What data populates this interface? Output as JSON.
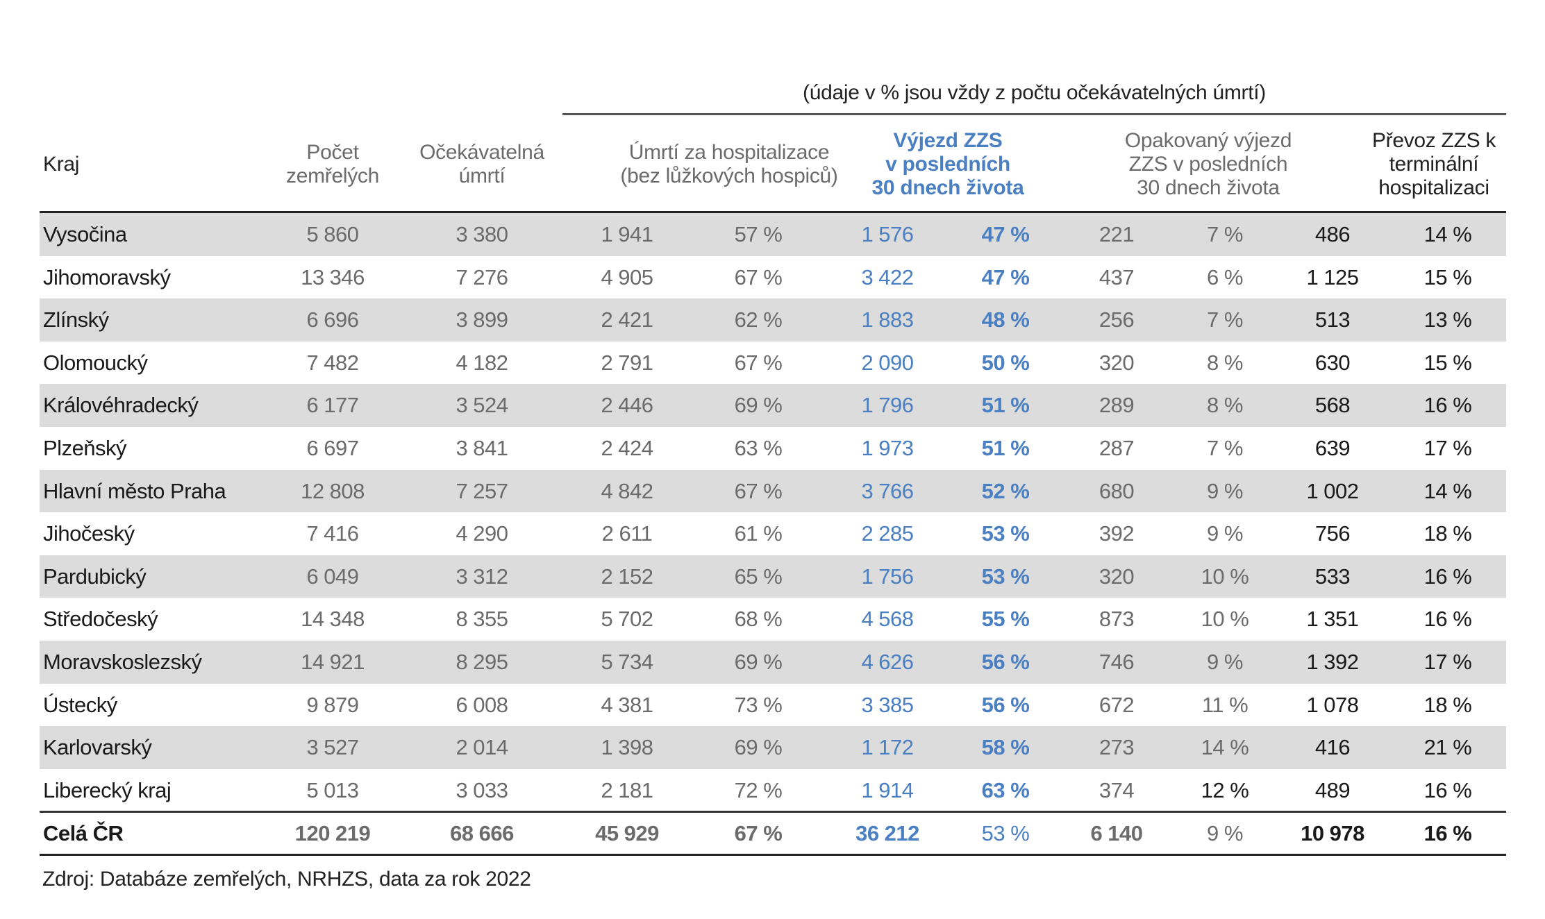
{
  "subtitle": "(údaje v % jsou vždy z počtu očekávatelných úmrtí)",
  "headers": {
    "kraj": "Kraj",
    "pocet": [
      "Počet",
      "zemřelých"
    ],
    "ocekavatelna": [
      "Očekávatelná",
      "úmrtí"
    ],
    "hospitalizace": [
      "Úmrtí za hospitalizace",
      "(bez lůžkových hospiců)"
    ],
    "vyjezd": [
      "Výjezd ZZS",
      "v posledních",
      "30 dnech života"
    ],
    "opakovany": [
      "Opakovaný výjezd",
      "ZZS v posledních",
      "30 dnech života"
    ],
    "prevoz": [
      "Převoz ZZS k",
      "terminální",
      "hospitalizaci"
    ]
  },
  "colors": {
    "accent_blue": "#4a7fc1",
    "row_shade": "#dcdcdc",
    "muted_text": "#6b6b6b"
  },
  "rows": [
    {
      "kraj": "Vysočina",
      "pocet": "5 860",
      "ocekavatelna": "3 380",
      "hosp_n": "1 941",
      "hosp_pct": "57 %",
      "zzs_n": "1 576",
      "zzs_pct": "47 %",
      "opak_n": "221",
      "opak_pct": "7 %",
      "prevoz_n": "486",
      "prevoz_pct": "14 %"
    },
    {
      "kraj": "Jihomoravský",
      "pocet": "13 346",
      "ocekavatelna": "7 276",
      "hosp_n": "4 905",
      "hosp_pct": "67 %",
      "zzs_n": "3 422",
      "zzs_pct": "47 %",
      "opak_n": "437",
      "opak_pct": "6 %",
      "prevoz_n": "1 125",
      "prevoz_pct": "15 %"
    },
    {
      "kraj": "Zlínský",
      "pocet": "6 696",
      "ocekavatelna": "3 899",
      "hosp_n": "2 421",
      "hosp_pct": "62 %",
      "zzs_n": "1 883",
      "zzs_pct": "48 %",
      "opak_n": "256",
      "opak_pct": "7 %",
      "prevoz_n": "513",
      "prevoz_pct": "13 %"
    },
    {
      "kraj": "Olomoucký",
      "pocet": "7 482",
      "ocekavatelna": "4 182",
      "hosp_n": "2 791",
      "hosp_pct": "67 %",
      "zzs_n": "2 090",
      "zzs_pct": "50 %",
      "opak_n": "320",
      "opak_pct": "8 %",
      "prevoz_n": "630",
      "prevoz_pct": "15 %"
    },
    {
      "kraj": "Královéhradecký",
      "pocet": "6 177",
      "ocekavatelna": "3 524",
      "hosp_n": "2 446",
      "hosp_pct": "69 %",
      "zzs_n": "1 796",
      "zzs_pct": "51 %",
      "opak_n": "289",
      "opak_pct": "8 %",
      "prevoz_n": "568",
      "prevoz_pct": "16 %"
    },
    {
      "kraj": "Plzeňský",
      "pocet": "6 697",
      "ocekavatelna": "3 841",
      "hosp_n": "2 424",
      "hosp_pct": "63 %",
      "zzs_n": "1 973",
      "zzs_pct": "51 %",
      "opak_n": "287",
      "opak_pct": "7 %",
      "prevoz_n": "639",
      "prevoz_pct": "17 %"
    },
    {
      "kraj": "Hlavní město Praha",
      "pocet": "12 808",
      "ocekavatelna": "7 257",
      "hosp_n": "4 842",
      "hosp_pct": "67 %",
      "zzs_n": "3 766",
      "zzs_pct": "52 %",
      "opak_n": "680",
      "opak_pct": "9 %",
      "prevoz_n": "1 002",
      "prevoz_pct": "14 %"
    },
    {
      "kraj": "Jihočeský",
      "pocet": "7 416",
      "ocekavatelna": "4 290",
      "hosp_n": "2 611",
      "hosp_pct": "61 %",
      "zzs_n": "2 285",
      "zzs_pct": "53 %",
      "opak_n": "392",
      "opak_pct": "9 %",
      "prevoz_n": "756",
      "prevoz_pct": "18 %"
    },
    {
      "kraj": "Pardubický",
      "pocet": "6 049",
      "ocekavatelna": "3 312",
      "hosp_n": "2 152",
      "hosp_pct": "65 %",
      "zzs_n": "1 756",
      "zzs_pct": "53 %",
      "opak_n": "320",
      "opak_pct": "10 %",
      "prevoz_n": "533",
      "prevoz_pct": "16 %"
    },
    {
      "kraj": "Středočeský",
      "pocet": "14 348",
      "ocekavatelna": "8 355",
      "hosp_n": "5 702",
      "hosp_pct": "68 %",
      "zzs_n": "4 568",
      "zzs_pct": "55 %",
      "opak_n": "873",
      "opak_pct": "10 %",
      "prevoz_n": "1 351",
      "prevoz_pct": "16 %"
    },
    {
      "kraj": "Moravskoslezský",
      "pocet": "14 921",
      "ocekavatelna": "8 295",
      "hosp_n": "5 734",
      "hosp_pct": "69 %",
      "zzs_n": "4 626",
      "zzs_pct": "56 %",
      "opak_n": "746",
      "opak_pct": "9 %",
      "prevoz_n": "1 392",
      "prevoz_pct": "17 %"
    },
    {
      "kraj": "Ústecký",
      "pocet": "9 879",
      "ocekavatelna": "6 008",
      "hosp_n": "4 381",
      "hosp_pct": "73 %",
      "zzs_n": "3 385",
      "zzs_pct": "56 %",
      "opak_n": "672",
      "opak_pct": "11 %",
      "prevoz_n": "1 078",
      "prevoz_pct": "18 %"
    },
    {
      "kraj": "Karlovarský",
      "pocet": "3 527",
      "ocekavatelna": "2 014",
      "hosp_n": "1 398",
      "hosp_pct": "69 %",
      "zzs_n": "1 172",
      "zzs_pct": "58 %",
      "opak_n": "273",
      "opak_pct": "14 %",
      "prevoz_n": "416",
      "prevoz_pct": "21 %"
    },
    {
      "kraj": "Liberecký kraj",
      "pocet": "5 013",
      "ocekavatelna": "3 033",
      "hosp_n": "2 181",
      "hosp_pct": "72 %",
      "zzs_n": "1 914",
      "zzs_pct": "63 %",
      "opak_n": "374",
      "opak_pct": "12 %",
      "prevoz_n": "489",
      "prevoz_pct": "16 %"
    }
  ],
  "total": {
    "kraj": "Celá ČR",
    "pocet": "120 219",
    "ocekavatelna": "68 666",
    "hosp_n": "45 929",
    "hosp_pct": "67 %",
    "zzs_n": "36 212",
    "zzs_pct": "53 %",
    "opak_n": "6 140",
    "opak_pct": "9 %",
    "prevoz_n": "10 978",
    "prevoz_pct": "16 %"
  },
  "source": "Zdroj: Databáze zemřelých, NRHZS, data za rok 2022"
}
